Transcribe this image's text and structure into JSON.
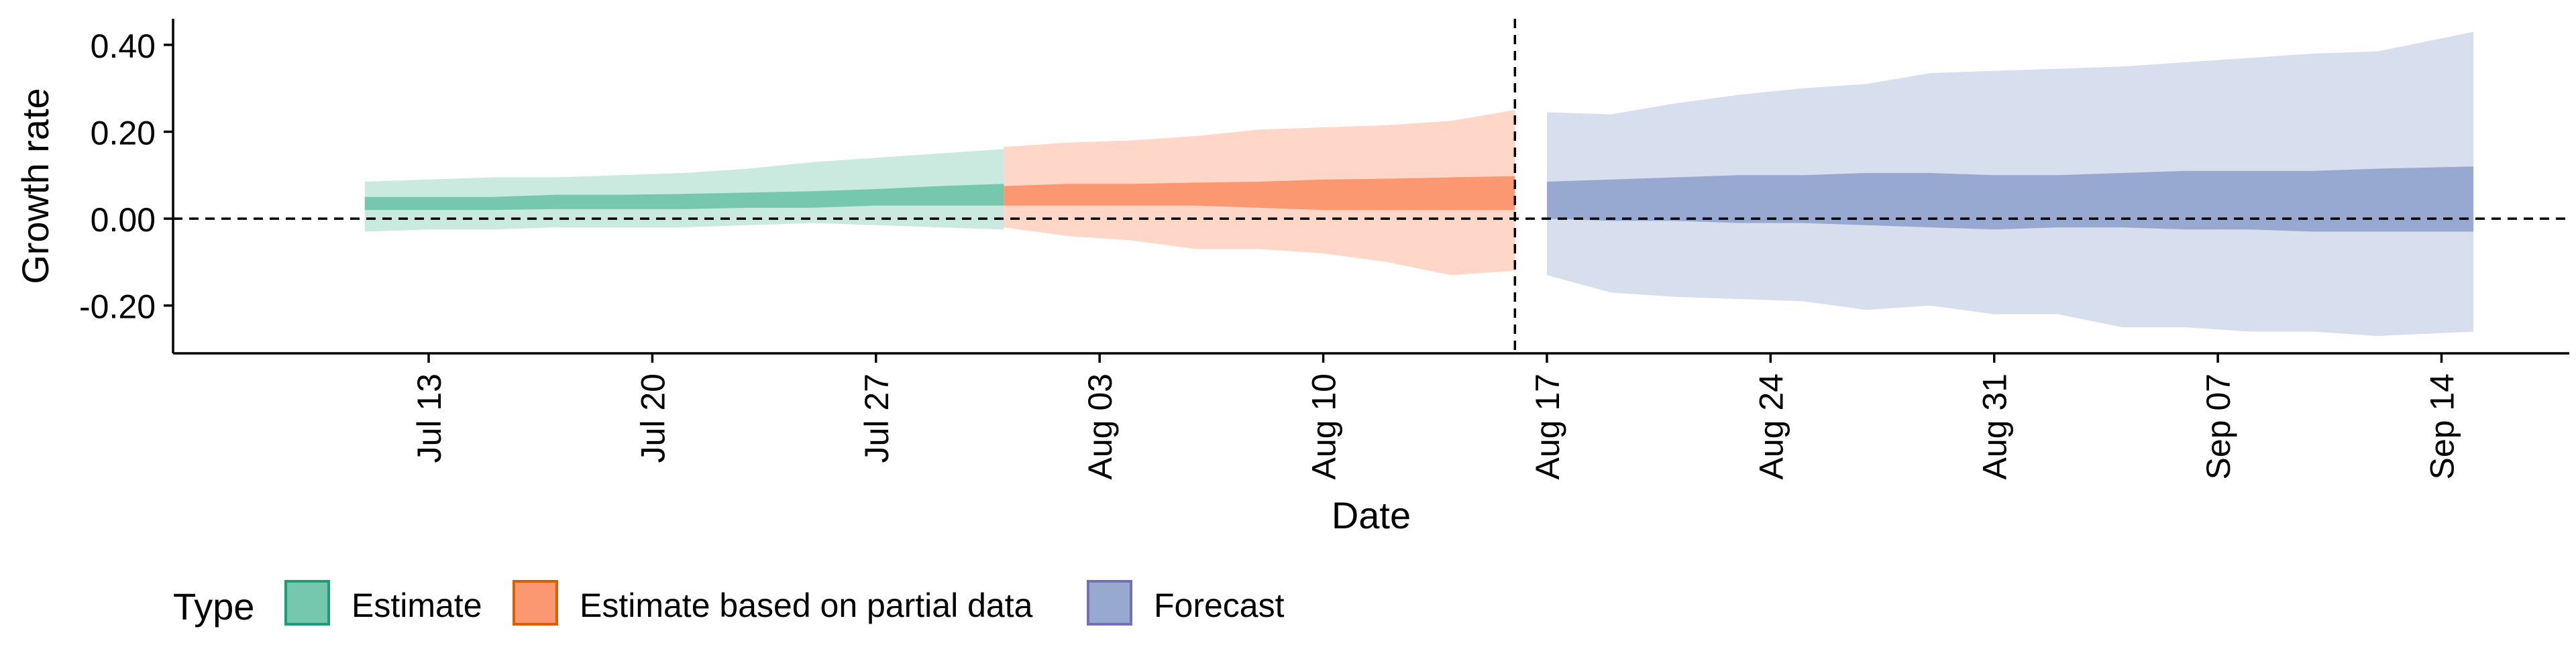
{
  "chart_data": {
    "type": "area",
    "xlabel": "Date",
    "ylabel": "Growth rate",
    "x_range": [
      "2020-07-05",
      "2020-09-18"
    ],
    "ylim": [
      -0.31,
      0.46
    ],
    "y_ticks": [
      -0.2,
      0.0,
      0.2,
      0.4
    ],
    "y_tick_labels": [
      "-0.20",
      "0.00",
      "0.20",
      "0.40"
    ],
    "x_ticks": [
      "2020-07-13",
      "2020-07-20",
      "2020-07-27",
      "2020-08-03",
      "2020-08-10",
      "2020-08-17",
      "2020-08-24",
      "2020-08-31",
      "2020-09-07",
      "2020-09-14"
    ],
    "x_tick_labels": [
      "Jul 13",
      "Jul 20",
      "Jul 27",
      "Aug 03",
      "Aug 10",
      "Aug 17",
      "Aug 24",
      "Aug 31",
      "Sep 07",
      "Sep 14"
    ],
    "reference_lines": {
      "hline_y": 0.0,
      "vline_x": "2020-08-16"
    },
    "legend": {
      "title": "Type",
      "position": "bottom-left",
      "entries": [
        "Estimate",
        "Estimate based on partial data",
        "Forecast"
      ]
    },
    "grid": false,
    "series": [
      {
        "name": "Estimate",
        "fill_color": "#66C2A5",
        "border_color": "#1B9E77",
        "x": [
          "2020-07-11",
          "2020-07-13",
          "2020-07-15",
          "2020-07-17",
          "2020-07-19",
          "2020-07-21",
          "2020-07-23",
          "2020-07-25",
          "2020-07-27",
          "2020-07-29",
          "2020-07-31"
        ],
        "lower90": [
          -0.03,
          -0.025,
          -0.025,
          -0.02,
          -0.02,
          -0.02,
          -0.015,
          -0.01,
          -0.015,
          -0.02,
          -0.025
        ],
        "upper90": [
          0.085,
          0.09,
          0.095,
          0.095,
          0.1,
          0.105,
          0.115,
          0.13,
          0.14,
          0.15,
          0.16
        ],
        "lower50": [
          0.02,
          0.02,
          0.02,
          0.022,
          0.022,
          0.022,
          0.025,
          0.025,
          0.03,
          0.03,
          0.03
        ],
        "upper50": [
          0.05,
          0.05,
          0.05,
          0.055,
          0.055,
          0.057,
          0.06,
          0.063,
          0.068,
          0.075,
          0.08
        ]
      },
      {
        "name": "Estimate based on partial data",
        "fill_color": "#FC8D62",
        "border_color": "#D95F02",
        "x": [
          "2020-07-31",
          "2020-08-02",
          "2020-08-04",
          "2020-08-06",
          "2020-08-08",
          "2020-08-10",
          "2020-08-12",
          "2020-08-14",
          "2020-08-16"
        ],
        "lower90": [
          -0.02,
          -0.04,
          -0.05,
          -0.07,
          -0.07,
          -0.08,
          -0.1,
          -0.13,
          -0.12
        ],
        "upper90": [
          0.165,
          0.175,
          0.18,
          0.19,
          0.205,
          0.21,
          0.215,
          0.225,
          0.25
        ],
        "lower50": [
          0.03,
          0.03,
          0.03,
          0.03,
          0.025,
          0.02,
          0.02,
          0.02,
          0.02
        ],
        "upper50": [
          0.075,
          0.08,
          0.08,
          0.083,
          0.085,
          0.09,
          0.092,
          0.095,
          0.098
        ]
      },
      {
        "name": "Forecast",
        "fill_color": "#8DA0CB",
        "border_color": "#7570B3",
        "x": [
          "2020-08-17",
          "2020-08-19",
          "2020-08-21",
          "2020-08-23",
          "2020-08-25",
          "2020-08-27",
          "2020-08-29",
          "2020-08-31",
          "2020-09-02",
          "2020-09-04",
          "2020-09-06",
          "2020-09-08",
          "2020-09-10",
          "2020-09-12",
          "2020-09-15"
        ],
        "lower90": [
          -0.13,
          -0.17,
          -0.18,
          -0.185,
          -0.19,
          -0.21,
          -0.2,
          -0.22,
          -0.22,
          -0.25,
          -0.25,
          -0.26,
          -0.26,
          -0.27,
          -0.26
        ],
        "upper90": [
          0.245,
          0.24,
          0.265,
          0.285,
          0.3,
          0.31,
          0.335,
          0.34,
          0.345,
          0.35,
          0.36,
          0.37,
          0.38,
          0.385,
          0.43
        ],
        "lower50": [
          0.0,
          -0.005,
          -0.005,
          -0.01,
          -0.01,
          -0.015,
          -0.02,
          -0.025,
          -0.02,
          -0.02,
          -0.025,
          -0.025,
          -0.03,
          -0.03,
          -0.03
        ],
        "upper50": [
          0.085,
          0.09,
          0.095,
          0.1,
          0.1,
          0.105,
          0.105,
          0.1,
          0.1,
          0.105,
          0.11,
          0.11,
          0.11,
          0.115,
          0.12
        ]
      }
    ]
  }
}
